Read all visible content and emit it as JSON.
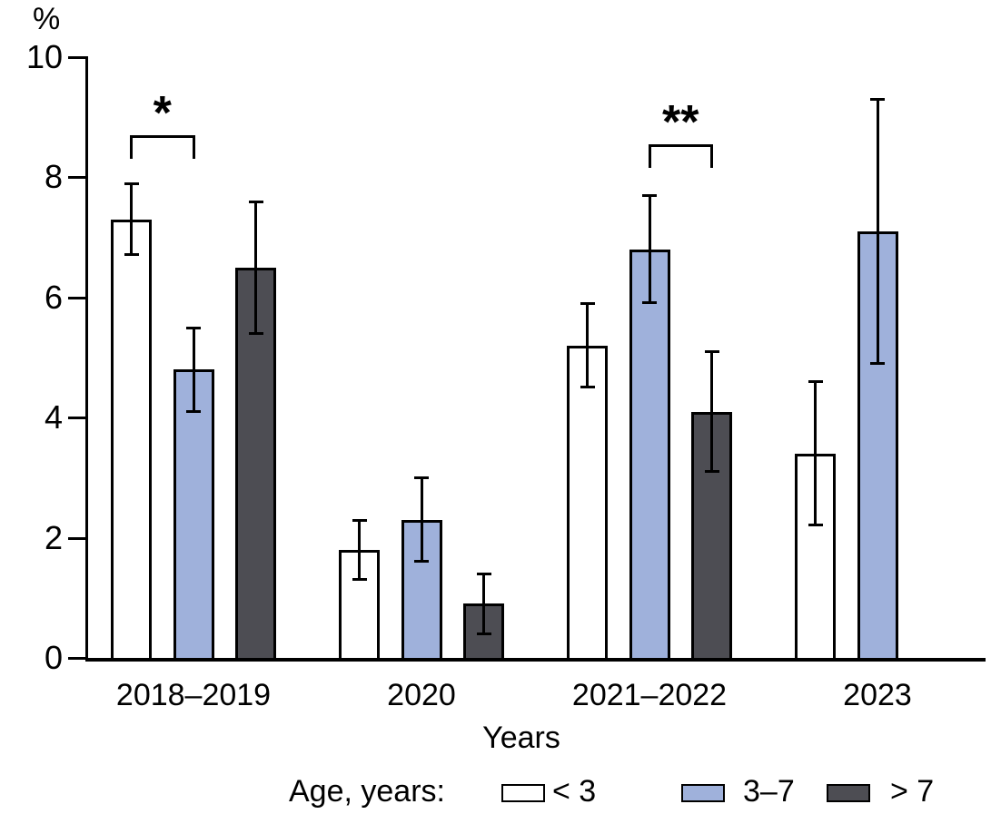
{
  "figure": {
    "legend_title": "Age, years:"
  },
  "chart_data": {
    "type": "bar",
    "title": "",
    "ylabel": "%",
    "xlabel": "Years",
    "ylim": [
      0,
      10
    ],
    "ytick_step": 2,
    "grid": false,
    "legend_position": "bottom",
    "bar_border_color": "#000000",
    "error_bar_color": "#000000",
    "categories": [
      "2018–2019",
      "2020",
      "2021–2022",
      "2023"
    ],
    "series": [
      {
        "name": "< 3",
        "color": "#ffffff",
        "values": [
          7.3,
          1.8,
          5.2,
          3.4
        ],
        "errors_low": [
          6.7,
          1.3,
          4.5,
          2.2
        ],
        "errors_high": [
          7.9,
          2.3,
          5.9,
          4.6
        ]
      },
      {
        "name": "3–7",
        "color": "#9fb1db",
        "values": [
          4.8,
          2.3,
          6.8,
          7.1
        ],
        "errors_low": [
          4.1,
          1.6,
          5.9,
          4.9
        ],
        "errors_high": [
          5.5,
          3.0,
          7.7,
          9.3
        ]
      },
      {
        "name": "> 7",
        "color": "#4d4d53",
        "values": [
          6.5,
          0.9,
          4.1,
          null
        ],
        "errors_low": [
          5.4,
          0.4,
          3.1,
          null
        ],
        "errors_high": [
          7.6,
          1.4,
          5.1,
          null
        ]
      }
    ],
    "annotations": [
      {
        "label": "*",
        "category_index": 0,
        "from_series": 0,
        "to_series": 1,
        "bracket_y": 8.7
      },
      {
        "label": "**",
        "category_index": 2,
        "from_series": 1,
        "to_series": 2,
        "bracket_y": 8.55
      }
    ]
  }
}
